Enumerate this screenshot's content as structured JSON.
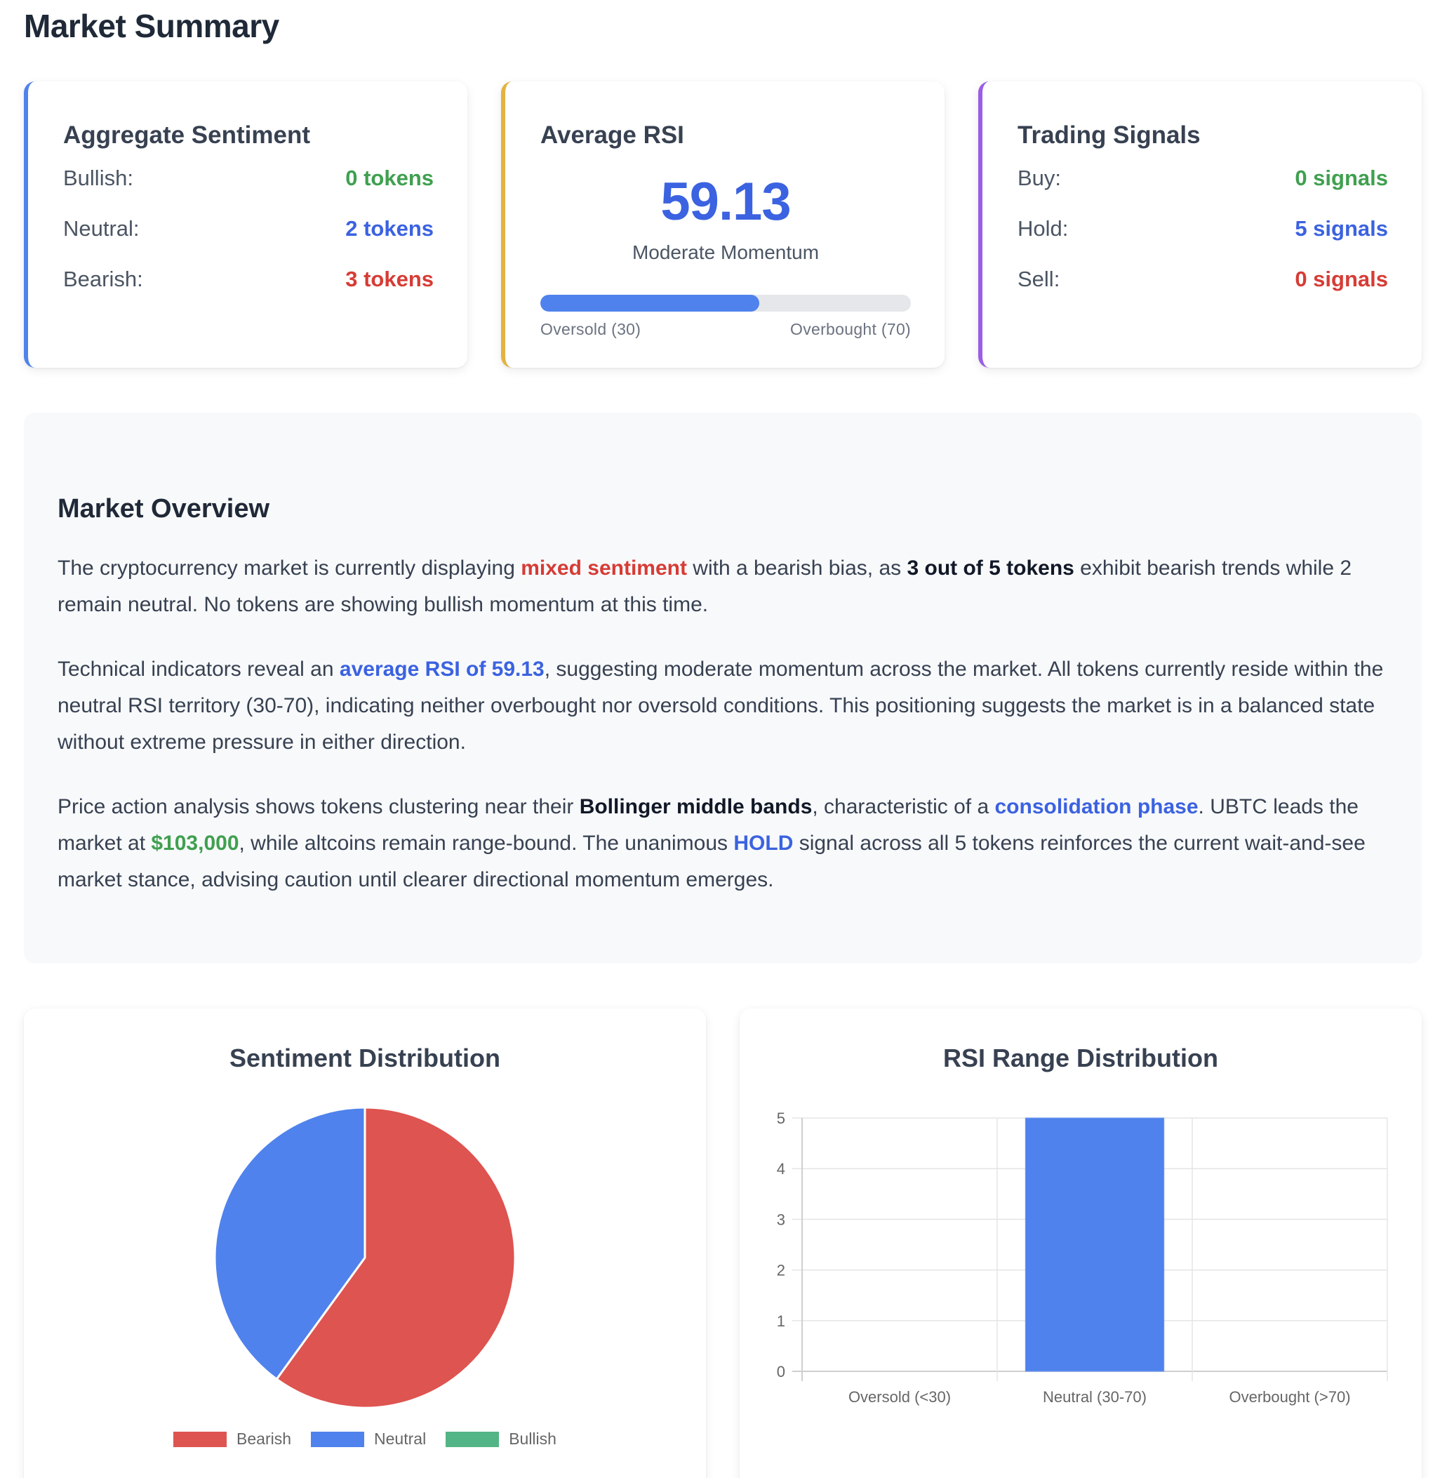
{
  "page": {
    "title": "Market Summary"
  },
  "colors": {
    "blue_accent": "#4f82ec",
    "gold_accent": "#e3b341",
    "purple_accent": "#9b5de5",
    "bullish": "#3fa04f",
    "neutral": "#3b62e0",
    "bearish": "#d63c35"
  },
  "cards": {
    "sentiment": {
      "title": "Aggregate Sentiment",
      "rows": [
        {
          "label": "Bullish:",
          "value": "0 tokens"
        },
        {
          "label": "Neutral:",
          "value": "2 tokens"
        },
        {
          "label": "Bearish:",
          "value": "3 tokens"
        }
      ]
    },
    "rsi": {
      "title": "Average RSI",
      "value": "59.13",
      "description": "Moderate Momentum",
      "progress_percent": 59.13,
      "low_label": "Oversold (30)",
      "high_label": "Overbought (70)"
    },
    "signals": {
      "title": "Trading Signals",
      "rows": [
        {
          "label": "Buy:",
          "value": "0 signals"
        },
        {
          "label": "Hold:",
          "value": "5 signals"
        },
        {
          "label": "Sell:",
          "value": "0 signals"
        }
      ]
    }
  },
  "overview": {
    "title": "Market Overview",
    "p1": {
      "t1": "The cryptocurrency market is currently displaying ",
      "h1": "mixed sentiment",
      "t2": " with a bearish bias, as ",
      "h2": "3 out of 5 tokens",
      "t3": " exhibit bearish trends while 2 remain neutral. No tokens are showing bullish momentum at this time."
    },
    "p2": {
      "t1": "Technical indicators reveal an ",
      "h1": "average RSI of 59.13",
      "t2": ", suggesting moderate momentum across the market. All tokens currently reside within the neutral RSI territory (30-70), indicating neither overbought nor oversold conditions. This positioning suggests the market is in a balanced state without extreme pressure in either direction."
    },
    "p3": {
      "t1": "Price action analysis shows tokens clustering near their ",
      "h1": "Bollinger middle bands",
      "t2": ", characteristic of a ",
      "h2": "consolidation phase",
      "t3": ". UBTC leads the market at ",
      "h3": "$103,000",
      "t4": ", while altcoins remain range-bound. The unanimous ",
      "h4": "HOLD",
      "t5": " signal across all 5 tokens reinforces the current wait-and-see market stance, advising caution until clearer directional momentum emerges."
    }
  },
  "chart_data": [
    {
      "type": "pie",
      "title": "Sentiment Distribution",
      "categories": [
        "Bearish",
        "Neutral",
        "Bullish"
      ],
      "values": [
        3,
        2,
        0
      ],
      "colors": [
        "#de5450",
        "#4f82ec",
        "#53b585"
      ],
      "legend_position": "bottom"
    },
    {
      "type": "bar",
      "title": "RSI Range Distribution",
      "categories": [
        "Oversold (<30)",
        "Neutral (30-70)",
        "Overbought (>70)"
      ],
      "values": [
        0,
        5,
        0
      ],
      "color": "#4f82ec",
      "xlabel": "",
      "ylabel": "",
      "ylim": [
        0,
        5
      ],
      "yticks": [
        "0",
        "1",
        "2",
        "3",
        "4",
        "5"
      ],
      "grid": true
    }
  ]
}
